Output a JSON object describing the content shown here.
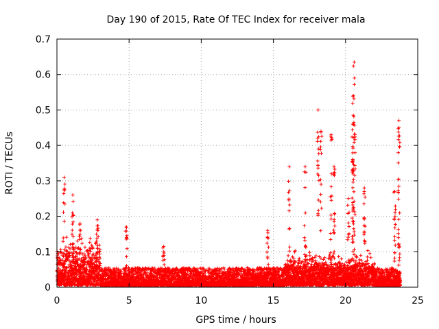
{
  "chart_data": {
    "type": "scatter",
    "title": "Day 190 of 2015, Rate Of TEC Index for receiver mala",
    "xlabel": "GPS time / hours",
    "ylabel": "ROTI / TECUs",
    "xlim": [
      0,
      25
    ],
    "ylim": [
      0,
      0.7
    ],
    "xticks": [
      0,
      5,
      10,
      15,
      20,
      25
    ],
    "yticks": [
      0,
      0.1,
      0.2,
      0.3,
      0.4,
      0.5,
      0.6,
      0.7
    ],
    "xtick_labels": [
      "0",
      "5",
      "10",
      "15",
      "20",
      "25"
    ],
    "ytick_labels": [
      "0",
      "0.1",
      "0.2",
      "0.3",
      "0.4",
      "0.5",
      "0.6",
      "0.7"
    ],
    "grid": true,
    "marker": "+",
    "color": "#ff0000",
    "x_range_observed": [
      0,
      23.8
    ],
    "baseline_level": 0.03,
    "notable_spikes": [
      {
        "x": 0.5,
        "y": 0.31
      },
      {
        "x": 1.1,
        "y": 0.26
      },
      {
        "x": 1.6,
        "y": 0.18
      },
      {
        "x": 2.8,
        "y": 0.19
      },
      {
        "x": 4.8,
        "y": 0.17
      },
      {
        "x": 7.4,
        "y": 0.115
      },
      {
        "x": 14.6,
        "y": 0.16
      },
      {
        "x": 16.1,
        "y": 0.34
      },
      {
        "x": 17.2,
        "y": 0.34
      },
      {
        "x": 18.1,
        "y": 0.5
      },
      {
        "x": 18.3,
        "y": 0.44
      },
      {
        "x": 19.0,
        "y": 0.43
      },
      {
        "x": 19.2,
        "y": 0.34
      },
      {
        "x": 20.2,
        "y": 0.25
      },
      {
        "x": 20.5,
        "y": 0.36
      },
      {
        "x": 20.6,
        "y": 0.635
      },
      {
        "x": 20.62,
        "y": 0.59
      },
      {
        "x": 20.55,
        "y": 0.54
      },
      {
        "x": 20.5,
        "y": 0.46
      },
      {
        "x": 21.3,
        "y": 0.28
      },
      {
        "x": 23.4,
        "y": 0.27
      },
      {
        "x": 23.7,
        "y": 0.47
      },
      {
        "x": 23.7,
        "y": 0.45
      }
    ]
  }
}
